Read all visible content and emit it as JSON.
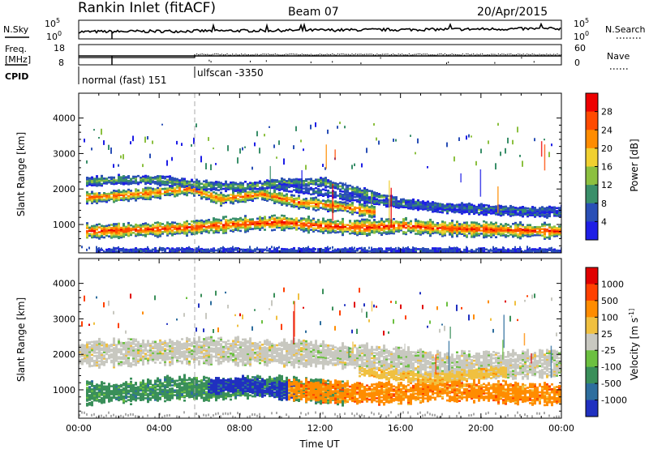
{
  "header": {
    "station_title": "Rankin Inlet (fitACF)",
    "beam": "Beam 07",
    "date": "20/Apr/2015"
  },
  "status_panels": {
    "nsky_label": "N.Sky",
    "nsearch_label": "N.Search",
    "noise_ticks": [
      "10^5",
      "10^0"
    ],
    "noise_ticks_right": [
      "10^5",
      "10^0"
    ],
    "freq_label_line1": "Freq.",
    "freq_label_line2": "[MHz]",
    "freq_ticks": [
      "18",
      "8"
    ],
    "nave_label": "Nave",
    "nave_ticks": [
      "60",
      "0"
    ],
    "cpid_label": "CPID",
    "cpid_segments": [
      {
        "name": "normal (fast) 151",
        "start_hour": 0,
        "end_hour": 6
      },
      {
        "name": "ulfscan -3350",
        "start_hour": 6,
        "end_hour": 24
      }
    ]
  },
  "chart_data": [
    {
      "type": "heatmap",
      "panel": "power",
      "ylabel": "Slant Range [km]",
      "yticks": [
        "4000",
        "3000",
        "2000",
        "1000"
      ],
      "ylim": [
        200,
        4700
      ],
      "xlim_hours": [
        0,
        24
      ],
      "colorbar_label": "Power [dB]",
      "colorbar_ticks": [
        "28",
        "24",
        "20",
        "16",
        "12",
        "8",
        "4"
      ],
      "colorbar_range": [
        0,
        32
      ],
      "colors": [
        "#1e1ee6",
        "#2a4fb6",
        "#3a8f6a",
        "#8cc040",
        "#f0d030",
        "#ff8c00",
        "#ff4a00",
        "#ee0000"
      ],
      "bands": [
        {
          "x": [
            0.5,
            2,
            4,
            5.5,
            6.5,
            8,
            10,
            12,
            14,
            16,
            18,
            20,
            22,
            24
          ],
          "y": [
            800,
            820,
            860,
            900,
            950,
            1000,
            1050,
            950,
            900,
            950,
            880,
            850,
            820,
            800
          ],
          "half": 180,
          "level": 29
        },
        {
          "x": [
            0.5,
            2,
            4,
            5.5,
            7,
            9,
            11,
            13,
            14.5
          ],
          "y": [
            1750,
            1800,
            1900,
            2000,
            1700,
            1850,
            1600,
            1500,
            1350
          ],
          "half": 140,
          "level": 26
        },
        {
          "x": [
            0.5,
            2,
            4,
            6,
            8,
            10,
            12,
            14,
            16,
            18,
            20,
            22,
            24
          ],
          "y": [
            2200,
            2250,
            2250,
            2100,
            2050,
            2150,
            2200,
            1900,
            1600,
            1450,
            1400,
            1350,
            1300
          ],
          "half": 110,
          "level": 13
        },
        {
          "x": [
            10,
            12,
            14,
            16,
            18,
            20,
            22,
            24
          ],
          "y": [
            2050,
            1900,
            1700,
            1550,
            1500,
            1450,
            1400,
            1400
          ],
          "half": 90,
          "level": 9
        },
        {
          "x": [
            1,
            3,
            5,
            7,
            9,
            11,
            13,
            15,
            17,
            19,
            21,
            23.8
          ],
          "y": [
            250,
            250,
            250,
            250,
            250,
            250,
            250,
            250,
            250,
            250,
            250,
            250
          ],
          "half": 60,
          "level": 6
        }
      ]
    },
    {
      "type": "heatmap",
      "panel": "velocity",
      "ylabel": "Slant Range [km]",
      "yticks": [
        "4000",
        "3000",
        "2000",
        "1000"
      ],
      "ylim": [
        200,
        4700
      ],
      "xlim_hours": [
        0,
        24
      ],
      "xticks": [
        "00:00",
        "04:00",
        "08:00",
        "12:00",
        "16:00",
        "20:00",
        "00:00"
      ],
      "xlabel": "Time UT",
      "colorbar_label": "Velocity [m s^-1]",
      "colorbar_ticks": [
        "1000",
        "500",
        "100",
        "25",
        "-25",
        "-100",
        "-500",
        "-1000"
      ],
      "colors": [
        "#2030c0",
        "#2e6e9e",
        "#3a8f5a",
        "#6cc040",
        "#c8c8c0",
        "#f0c040",
        "#ff8c00",
        "#ff4000",
        "#e00000"
      ],
      "regions": [
        {
          "x": [
            0.2,
            3,
            6,
            9,
            12,
            14.5,
            16,
            18,
            20,
            22,
            24
          ],
          "y": [
            2000,
            2050,
            2100,
            2050,
            2000,
            1900,
            1800,
            1700,
            1700,
            1700,
            1750
          ],
          "half": 320,
          "class": 4
        },
        {
          "x": [
            0.5,
            3,
            5,
            7,
            9,
            11,
            13
          ],
          "y": [
            900,
            950,
            1050,
            1000,
            1100,
            1000,
            900
          ],
          "half": 280,
          "class": 2
        },
        {
          "x": [
            6.5,
            8,
            9.5,
            10.5
          ],
          "y": [
            1100,
            1150,
            1000,
            950
          ],
          "half": 200,
          "class": 0
        },
        {
          "x": [
            10.5,
            12,
            14,
            16,
            18,
            20,
            22,
            24
          ],
          "y": [
            1000,
            950,
            900,
            900,
            1000,
            950,
            900,
            850
          ],
          "half": 260,
          "class": 6
        },
        {
          "x": [
            14,
            16,
            17.5,
            19,
            21
          ],
          "y": [
            1500,
            1400,
            1300,
            1400,
            1500
          ],
          "half": 130,
          "class": 5
        }
      ]
    }
  ]
}
